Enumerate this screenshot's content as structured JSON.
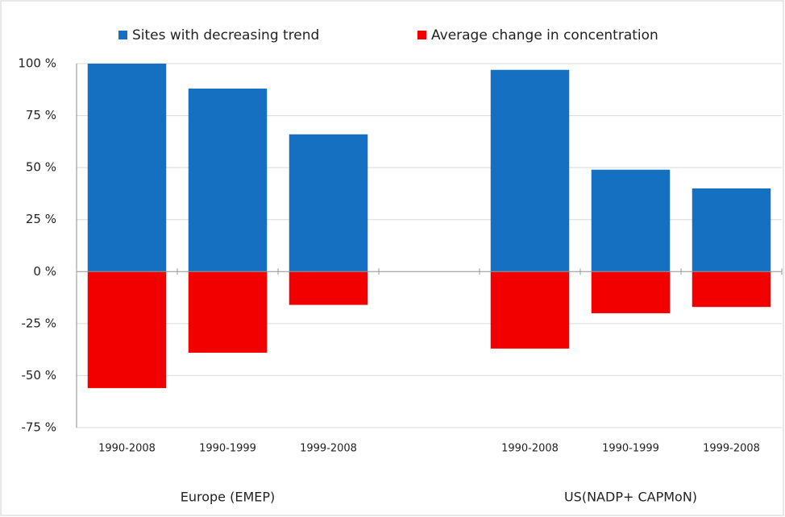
{
  "chart_data": {
    "type": "bar",
    "categories": [
      "1990-2008",
      "1990-1999",
      "1999-2008",
      null,
      "1990-2008",
      "1990-1999",
      "1999-2008"
    ],
    "group_labels": [
      "Europe (EMEP)",
      "US(NADP+ CAPMoN)"
    ],
    "series": [
      {
        "name": "Sites with decreasing trend",
        "color": "#1670c2",
        "values": [
          100,
          88,
          66,
          null,
          97,
          49,
          40
        ]
      },
      {
        "name": "Average change in concentration",
        "color": "#f20000",
        "values": [
          -56,
          -39,
          -16,
          null,
          -37,
          -20,
          -17
        ]
      }
    ],
    "ylim": [
      -75,
      100
    ],
    "yticks": [
      {
        "value": -75,
        "label": "-75 %"
      },
      {
        "value": -50,
        "label": "-50 %"
      },
      {
        "value": -25,
        "label": "-25 %"
      },
      {
        "value": 0,
        "label": "0 %"
      },
      {
        "value": 25,
        "label": "25 %"
      },
      {
        "value": 50,
        "label": "50 %"
      },
      {
        "value": 75,
        "label": "75 %"
      },
      {
        "value": 100,
        "label": "100 %"
      }
    ],
    "grid": true,
    "legend": "top"
  }
}
